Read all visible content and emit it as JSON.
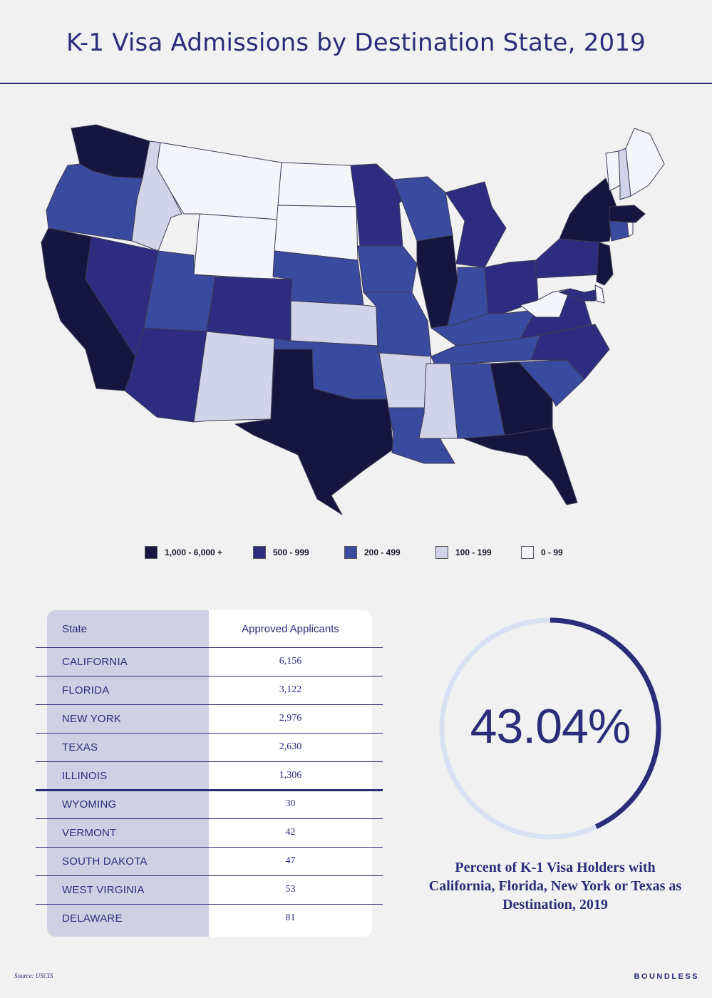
{
  "title": "K-1 Visa Admissions by Destination State, 2019",
  "colors": {
    "tier_1000_plus": "#161540",
    "tier_500_999": "#2e2c80",
    "tier_200_499": "#3a4a9e",
    "tier_100_199": "#d1d3e8",
    "tier_0_99": "#f4f5fb",
    "accent": "#2b2d7a",
    "ring_track": "#d9e0f3"
  },
  "legend": [
    {
      "label": "1,000 - 6,000 +",
      "color": "#161540"
    },
    {
      "label": "500 - 999",
      "color": "#2e2c80"
    },
    {
      "label": "200 - 499",
      "color": "#3a4a9e"
    },
    {
      "label": "100 - 199",
      "color": "#d1d3e8"
    },
    {
      "label": "0 - 99",
      "color": "#f4f5fb"
    }
  ],
  "table": {
    "header_state": "State",
    "header_value": "Approved Applicants",
    "rows": [
      {
        "state": "CALIFORNIA",
        "value": "6,156"
      },
      {
        "state": "FLORIDA",
        "value": "3,122"
      },
      {
        "state": "NEW YORK",
        "value": "2,976"
      },
      {
        "state": "TEXAS",
        "value": "2,630"
      },
      {
        "state": "ILLINOIS",
        "value": "1,306"
      },
      {
        "state": "WYOMING",
        "value": "30"
      },
      {
        "state": "VERMONT",
        "value": "42"
      },
      {
        "state": "SOUTH DAKOTA",
        "value": "47"
      },
      {
        "state": "WEST VIRGINIA",
        "value": "53"
      },
      {
        "state": "DELAWARE",
        "value": "81"
      }
    ]
  },
  "ring": {
    "value_text": "43.04%",
    "fraction": 0.4304,
    "caption": "Percent of K-1 Visa Holders with California, Florida, New York or Texas as Destination, 2019"
  },
  "source": "Source: USCIS",
  "brand": "BOUNDLESS",
  "chart_data": [
    {
      "type": "map",
      "title": "K-1 Visa Admissions by Destination State, 2019",
      "bins": [
        "1,000 - 6,000 +",
        "500 - 999",
        "200 - 499",
        "100 - 199",
        "0 - 99"
      ],
      "states_by_bin": {
        "1,000 - 6,000 +": [
          "WA",
          "CA",
          "TX",
          "IL",
          "GA",
          "FL",
          "NY",
          "NJ",
          "MA"
        ],
        "500 - 999": [
          "NV",
          "AZ",
          "CO",
          "MN",
          "MI",
          "OH",
          "PA",
          "VA",
          "NC",
          "MD"
        ],
        "200 - 499": [
          "OR",
          "UT",
          "NE",
          "IA",
          "WI",
          "MO",
          "OK",
          "IN",
          "KY",
          "TN",
          "LA",
          "AL",
          "SC",
          "CT"
        ],
        "100 - 199": [
          "ID",
          "NM",
          "KS",
          "AR",
          "MS",
          "NH"
        ],
        "0 - 99": [
          "MT",
          "WY",
          "ND",
          "SD",
          "WV",
          "VT",
          "ME",
          "DE",
          "RI"
        ]
      }
    },
    {
      "type": "table",
      "columns": [
        "State",
        "Approved Applicants"
      ],
      "rows": [
        [
          "CALIFORNIA",
          6156
        ],
        [
          "FLORIDA",
          3122
        ],
        [
          "NEW YORK",
          2976
        ],
        [
          "TEXAS",
          2630
        ],
        [
          "ILLINOIS",
          1306
        ],
        [
          "WYOMING",
          30
        ],
        [
          "VERMONT",
          42
        ],
        [
          "SOUTH DAKOTA",
          47
        ],
        [
          "WEST VIRGINIA",
          53
        ],
        [
          "DELAWARE",
          81
        ]
      ]
    },
    {
      "type": "pie",
      "title": "Percent of K-1 Visa Holders with California, Florida, New York or Texas as Destination, 2019",
      "values": [
        43.04
      ]
    }
  ]
}
